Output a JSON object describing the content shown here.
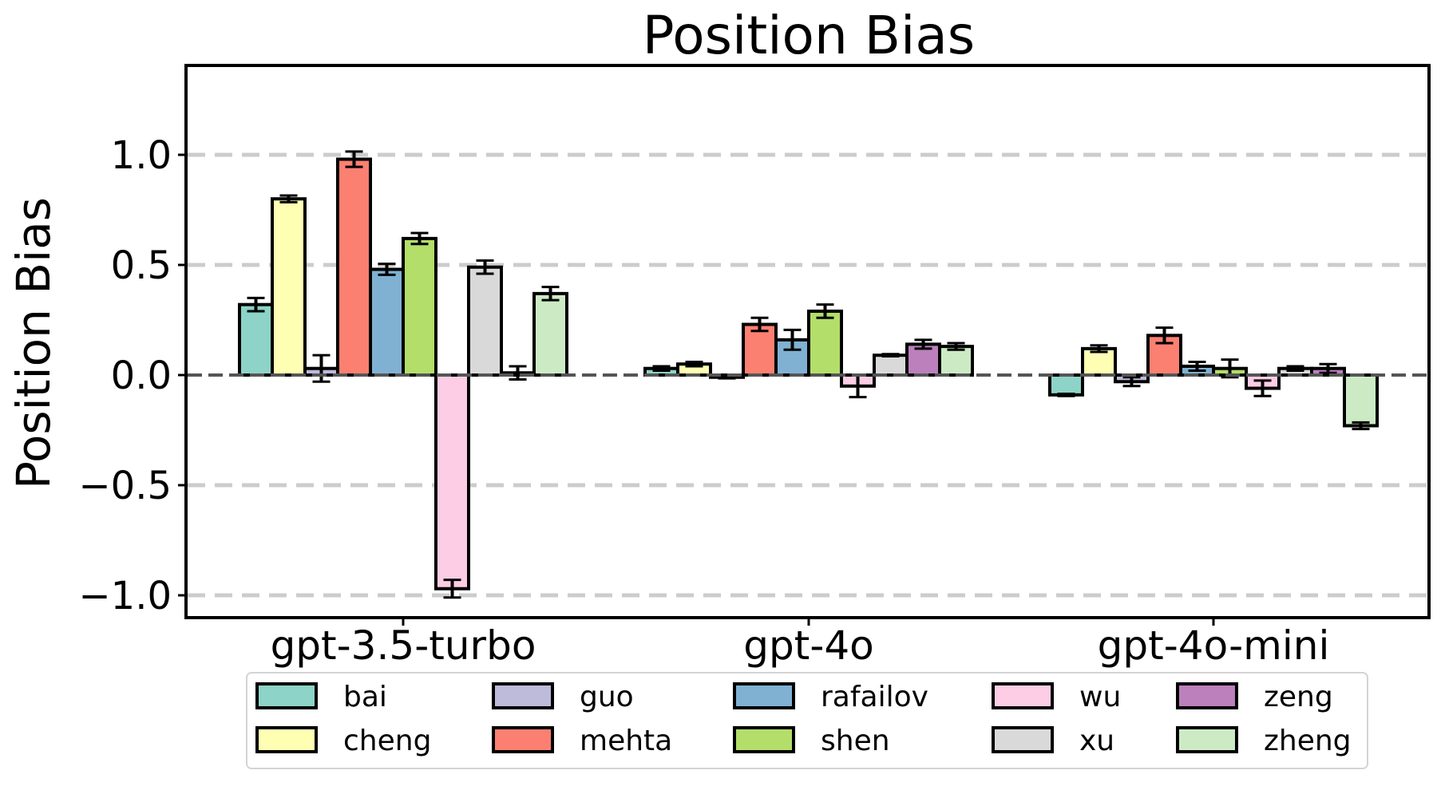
{
  "chart_data": {
    "type": "bar",
    "title": "Position Bias",
    "ylabel": "Position Bias",
    "xlabel": "",
    "categories": [
      "gpt-3.5-turbo",
      "gpt-4o",
      "gpt-4o-mini"
    ],
    "ylim": [
      -1.1,
      1.4
    ],
    "yticks": [
      -1.0,
      -0.5,
      0.0,
      0.5,
      1.0
    ],
    "ytick_labels": [
      "−1.0",
      "−0.5",
      "0.0",
      "0.5",
      "1.0"
    ],
    "grid": "horizontal dashed",
    "legend_position": "bottom",
    "series": [
      {
        "name": "bai",
        "color": "#8dd3c7",
        "values": [
          0.32,
          0.03,
          -0.09
        ],
        "errors": [
          0.03,
          0.01,
          0.005
        ]
      },
      {
        "name": "cheng",
        "color": "#ffffb3",
        "values": [
          0.8,
          0.05,
          0.12
        ],
        "errors": [
          0.015,
          0.01,
          0.015
        ]
      },
      {
        "name": "guo",
        "color": "#bebada",
        "values": [
          0.03,
          -0.01,
          -0.03
        ],
        "errors": [
          0.06,
          0.005,
          0.02
        ]
      },
      {
        "name": "mehta",
        "color": "#fb8072",
        "values": [
          0.98,
          0.23,
          0.18
        ],
        "errors": [
          0.035,
          0.03,
          0.035
        ]
      },
      {
        "name": "rafailov",
        "color": "#80b1d3",
        "values": [
          0.48,
          0.16,
          0.04
        ],
        "errors": [
          0.025,
          0.045,
          0.02
        ]
      },
      {
        "name": "shen",
        "color": "#b3de69",
        "values": [
          0.62,
          0.29,
          0.03
        ],
        "errors": [
          0.025,
          0.03,
          0.04
        ]
      },
      {
        "name": "wu",
        "color": "#fccde5",
        "values": [
          -0.97,
          -0.05,
          -0.06
        ],
        "errors": [
          0.04,
          0.05,
          0.035
        ]
      },
      {
        "name": "xu",
        "color": "#d9d9d9",
        "values": [
          0.49,
          0.09,
          0.03
        ],
        "errors": [
          0.03,
          0.005,
          0.01
        ]
      },
      {
        "name": "zeng",
        "color": "#bc80bd",
        "values": [
          0.01,
          0.14,
          0.03
        ],
        "errors": [
          0.03,
          0.02,
          0.02
        ]
      },
      {
        "name": "zheng",
        "color": "#ccebc5",
        "values": [
          0.37,
          0.13,
          -0.23
        ],
        "errors": [
          0.03,
          0.015,
          0.015
        ]
      }
    ]
  }
}
